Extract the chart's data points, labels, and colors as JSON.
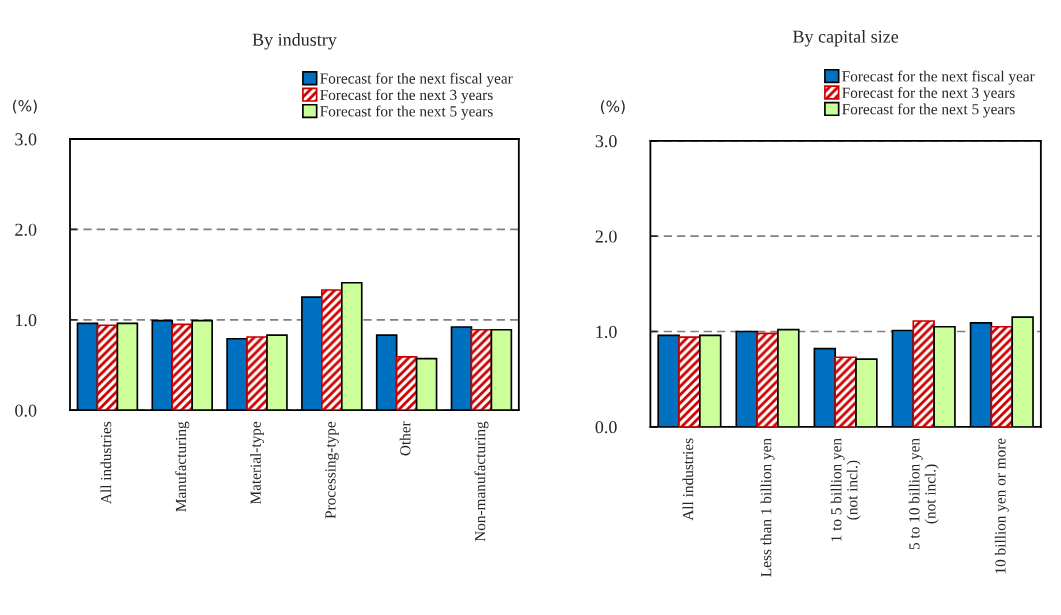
{
  "chart_data": [
    {
      "type": "bar",
      "title": "By industry",
      "ylabel": "(%)",
      "categories": [
        "All industries",
        "Manufacturing",
        "Material-type",
        "Processing-type",
        "Other",
        "Non-manufacturing"
      ],
      "series": [
        {
          "name": "Forecast for the next fiscal year",
          "color": "#0070c0",
          "values": [
            0.96,
            0.99,
            0.79,
            1.25,
            0.83,
            0.92
          ]
        },
        {
          "name": "Forecast for the next 3 years",
          "color": "#cc0000",
          "values": [
            0.94,
            0.95,
            0.81,
            1.33,
            0.59,
            0.89
          ]
        },
        {
          "name": "Forecast for the next 5 years",
          "color": "#ccff99",
          "values": [
            0.96,
            0.99,
            0.83,
            1.41,
            0.57,
            0.89
          ]
        }
      ],
      "ylim": [
        0,
        3
      ],
      "yticks": [
        {
          "value": 0,
          "label": "0.0"
        },
        {
          "value": 1,
          "label": "1.0"
        },
        {
          "value": 2,
          "label": "2.0"
        },
        {
          "value": 3,
          "label": "3.0"
        }
      ],
      "grid": "y",
      "legend": "top right"
    },
    {
      "type": "bar",
      "title": "By capital size",
      "ylabel": "(%)",
      "categories": [
        "All industries",
        "Less than 1 billion yen",
        "1 to 5 billion yen\n(not incl.)",
        "5 to 10 billion yen\n(not incl.)",
        "10 billion yen or more"
      ],
      "series": [
        {
          "name": "Forecast for the next fiscal year",
          "color": "#0070c0",
          "values": [
            0.96,
            1.0,
            0.82,
            1.01,
            1.09
          ]
        },
        {
          "name": "Forecast for the next 3 years",
          "color": "#cc0000",
          "values": [
            0.94,
            0.98,
            0.73,
            1.11,
            1.05
          ]
        },
        {
          "name": "Forecast for the next 5 years",
          "color": "#ccff99",
          "values": [
            0.96,
            1.02,
            0.71,
            1.05,
            1.15
          ]
        }
      ],
      "ylim": [
        0,
        3
      ],
      "yticks": [
        {
          "value": 0,
          "label": "0.0"
        },
        {
          "value": 1,
          "label": "1.0"
        },
        {
          "value": 2,
          "label": "2.0"
        },
        {
          "value": 3,
          "label": "3.0"
        }
      ],
      "grid": "y",
      "legend": "top right"
    }
  ]
}
